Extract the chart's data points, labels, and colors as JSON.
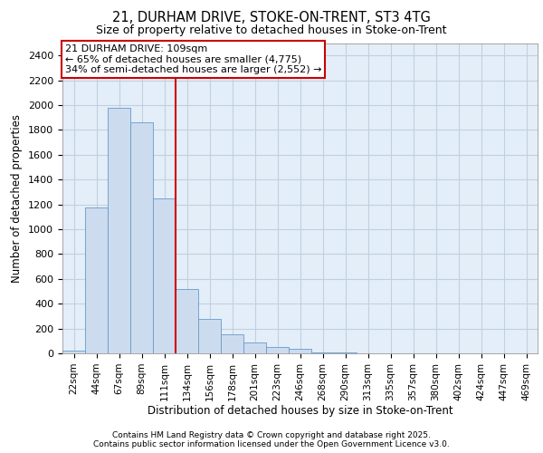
{
  "title_line1": "21, DURHAM DRIVE, STOKE-ON-TRENT, ST3 4TG",
  "title_line2": "Size of property relative to detached houses in Stoke-on-Trent",
  "xlabel": "Distribution of detached houses by size in Stoke-on-Trent",
  "ylabel": "Number of detached properties",
  "categories": [
    "22sqm",
    "44sqm",
    "67sqm",
    "89sqm",
    "111sqm",
    "134sqm",
    "156sqm",
    "178sqm",
    "201sqm",
    "223sqm",
    "246sqm",
    "268sqm",
    "290sqm",
    "313sqm",
    "335sqm",
    "357sqm",
    "380sqm",
    "402sqm",
    "424sqm",
    "447sqm",
    "469sqm"
  ],
  "values": [
    25,
    1175,
    1975,
    1860,
    1250,
    520,
    275,
    150,
    90,
    50,
    40,
    5,
    5,
    0,
    0,
    0,
    0,
    0,
    0,
    0,
    0
  ],
  "bar_color": "#ccdcee",
  "bar_edge_color": "#6699cc",
  "grid_color": "#c0d0e0",
  "background_color": "#e4eef8",
  "annotation_text": "21 DURHAM DRIVE: 109sqm\n← 65% of detached houses are smaller (4,775)\n34% of semi-detached houses are larger (2,552) →",
  "vline_position": 4.5,
  "vline_color": "#cc0000",
  "annotation_box_edge": "#cc0000",
  "ylim": [
    0,
    2500
  ],
  "yticks": [
    0,
    200,
    400,
    600,
    800,
    1000,
    1200,
    1400,
    1600,
    1800,
    2000,
    2200,
    2400
  ],
  "footer_line1": "Contains HM Land Registry data © Crown copyright and database right 2025.",
  "footer_line2": "Contains public sector information licensed under the Open Government Licence v3.0."
}
